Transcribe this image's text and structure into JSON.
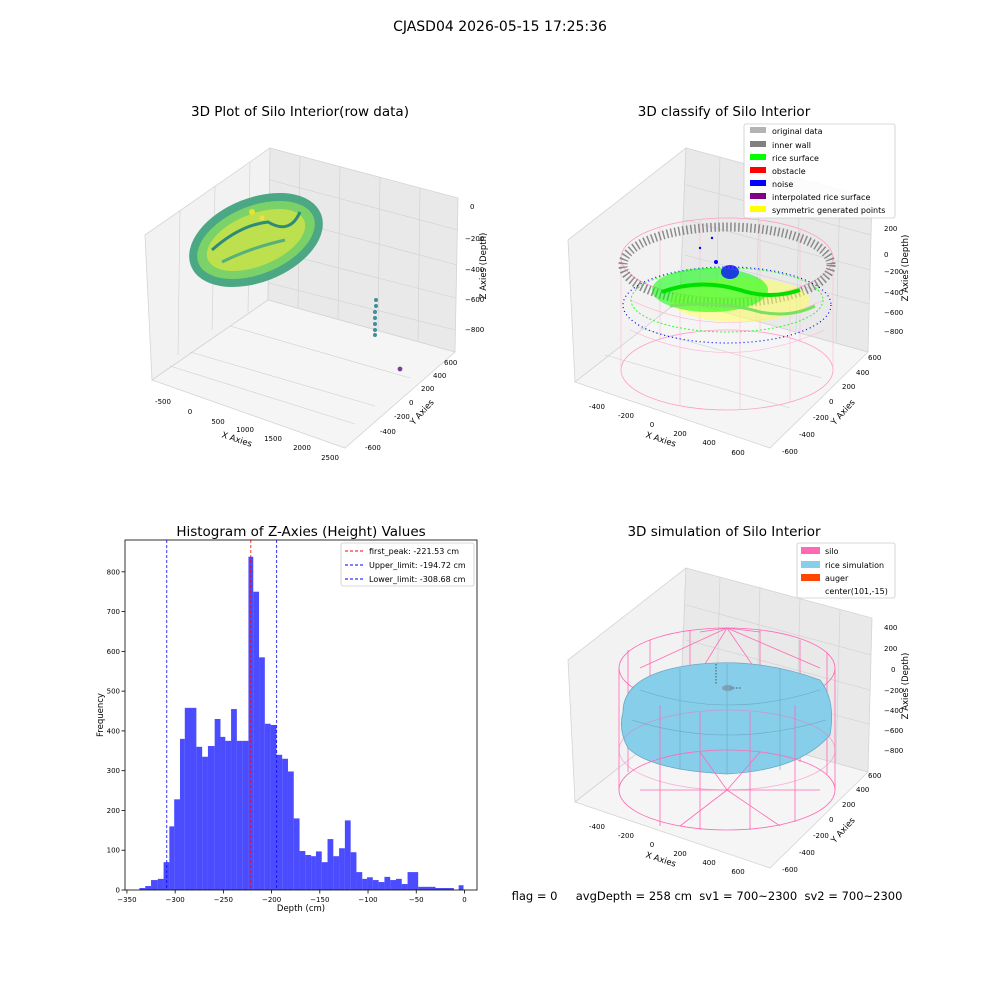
{
  "suptitle": "CJASD04 2026-05-15 17:25:36",
  "panel1": {
    "title": "3D Plot of Silo Interior(row data)",
    "xlabel": "X Axies",
    "ylabel": "Y Axies",
    "zlabel": "Z Axies (Depth)",
    "xticks": [
      "-500",
      "0",
      "500",
      "1000",
      "1500",
      "2000",
      "2500"
    ],
    "yticks": [
      "-600",
      "-400",
      "-200",
      "0",
      "200",
      "400",
      "600"
    ],
    "zticks": [
      "0",
      "−200",
      "−400",
      "−600",
      "−800"
    ]
  },
  "panel2": {
    "title": "3D classify of Silo Interior",
    "xlabel": "X Axies",
    "ylabel": "Y Axies",
    "zlabel": "Z Axies (Depth)",
    "xticks": [
      "-400",
      "-200",
      "0",
      "200",
      "400",
      "600"
    ],
    "yticks": [
      "-600",
      "-400",
      "-200",
      "0",
      "200",
      "400",
      "600"
    ],
    "zticks": [
      "200",
      "0",
      "−200",
      "−400",
      "−600",
      "−800"
    ],
    "legend": [
      {
        "label": "original data",
        "color": "#b3b3b3"
      },
      {
        "label": "inner wall",
        "color": "#808080"
      },
      {
        "label": "rice surface",
        "color": "#00ff00"
      },
      {
        "label": "obstacle",
        "color": "#ff0000"
      },
      {
        "label": "noise",
        "color": "#0000ff"
      },
      {
        "label": "interpolated rice surface",
        "color": "#800080"
      },
      {
        "label": "symmetric generated points",
        "color": "#ffff00"
      }
    ]
  },
  "panel4": {
    "title": "3D simulation of Silo Interior",
    "xlabel": "X Axies",
    "ylabel": "Y Axies",
    "zlabel": "Z Axies (Depth)",
    "xticks": [
      "-400",
      "-200",
      "0",
      "200",
      "400",
      "600"
    ],
    "yticks": [
      "-600",
      "-400",
      "-200",
      "0",
      "200",
      "400",
      "600"
    ],
    "zticks": [
      "400",
      "200",
      "0",
      "−200",
      "−400",
      "−600",
      "−800"
    ],
    "legend": [
      {
        "label": "silo",
        "color": "#ff69b4"
      },
      {
        "label": "rice simulation",
        "color": "#87ceeb"
      },
      {
        "label": "auger",
        "color": "#ff4500"
      },
      {
        "label": "center(101,-15)",
        "color": ""
      }
    ]
  },
  "status_line": "flag = 0     avgDepth = 258 cm  sv1 = 700~2300  sv2 = 700~2300",
  "chart_data": [
    {
      "type": "bar",
      "title": "Histogram of Z-Axies (Height) Values",
      "xlabel": "Depth (cm)",
      "ylabel": "Frequency",
      "xlim": [
        -352,
        13
      ],
      "ylim": [
        0,
        880
      ],
      "xticks": [
        -350,
        -300,
        -250,
        -200,
        -150,
        -100,
        -50,
        0
      ],
      "yticks": [
        0,
        100,
        200,
        300,
        400,
        500,
        600,
        700,
        800
      ],
      "bar_color": "#0000ff",
      "bins": [
        {
          "x0": -337,
          "x1": -331,
          "count": 5
        },
        {
          "x0": -331,
          "x1": -325,
          "count": 10
        },
        {
          "x0": -325,
          "x1": -318,
          "count": 25
        },
        {
          "x0": -318,
          "x1": -312,
          "count": 28
        },
        {
          "x0": -312,
          "x1": -306,
          "count": 70
        },
        {
          "x0": -306,
          "x1": -301,
          "count": 160
        },
        {
          "x0": -301,
          "x1": -295,
          "count": 228
        },
        {
          "x0": -295,
          "x1": -290,
          "count": 380
        },
        {
          "x0": -290,
          "x1": -278,
          "count": 458
        },
        {
          "x0": -278,
          "x1": -272,
          "count": 360
        },
        {
          "x0": -272,
          "x1": -266,
          "count": 335
        },
        {
          "x0": -266,
          "x1": -259,
          "count": 362
        },
        {
          "x0": -259,
          "x1": -253,
          "count": 430
        },
        {
          "x0": -253,
          "x1": -248,
          "count": 385
        },
        {
          "x0": -248,
          "x1": -242,
          "count": 375
        },
        {
          "x0": -242,
          "x1": -236,
          "count": 455
        },
        {
          "x0": -236,
          "x1": -230,
          "count": 375
        },
        {
          "x0": -230,
          "x1": -224,
          "count": 375
        },
        {
          "x0": -224,
          "x1": -219,
          "count": 838
        },
        {
          "x0": -219,
          "x1": -213,
          "count": 750
        },
        {
          "x0": -213,
          "x1": -207,
          "count": 585
        },
        {
          "x0": -207,
          "x1": -201,
          "count": 418
        },
        {
          "x0": -201,
          "x1": -195,
          "count": 415
        },
        {
          "x0": -195,
          "x1": -189,
          "count": 340
        },
        {
          "x0": -189,
          "x1": -183,
          "count": 330
        },
        {
          "x0": -183,
          "x1": -177,
          "count": 298
        },
        {
          "x0": -177,
          "x1": -171,
          "count": 180
        },
        {
          "x0": -171,
          "x1": -165,
          "count": 98
        },
        {
          "x0": -165,
          "x1": -159,
          "count": 88
        },
        {
          "x0": -159,
          "x1": -154,
          "count": 85
        },
        {
          "x0": -154,
          "x1": -148,
          "count": 97
        },
        {
          "x0": -148,
          "x1": -142,
          "count": 70
        },
        {
          "x0": -142,
          "x1": -136,
          "count": 128
        },
        {
          "x0": -136,
          "x1": -130,
          "count": 85
        },
        {
          "x0": -130,
          "x1": -124,
          "count": 105
        },
        {
          "x0": -124,
          "x1": -118,
          "count": 175
        },
        {
          "x0": -118,
          "x1": -112,
          "count": 95
        },
        {
          "x0": -112,
          "x1": -106,
          "count": 45
        },
        {
          "x0": -106,
          "x1": -101,
          "count": 28
        },
        {
          "x0": -101,
          "x1": -95,
          "count": 32
        },
        {
          "x0": -95,
          "x1": -89,
          "count": 25
        },
        {
          "x0": -89,
          "x1": -83,
          "count": 20
        },
        {
          "x0": -83,
          "x1": -77,
          "count": 33
        },
        {
          "x0": -77,
          "x1": -71,
          "count": 25
        },
        {
          "x0": -71,
          "x1": -65,
          "count": 28
        },
        {
          "x0": -65,
          "x1": -59,
          "count": 15
        },
        {
          "x0": -59,
          "x1": -48,
          "count": 45
        },
        {
          "x0": -48,
          "x1": -30,
          "count": 8
        },
        {
          "x0": -30,
          "x1": -11,
          "count": 5
        },
        {
          "x0": -6,
          "x1": -1,
          "count": 12
        }
      ],
      "vlines": [
        {
          "label": "first_peak: -221.53 cm",
          "value": -221.53,
          "color": "#ff0000"
        },
        {
          "label": "Upper_limit: -194.72 cm",
          "value": -194.72,
          "color": "#0000ff"
        },
        {
          "label": "Lower_limit: -308.68 cm",
          "value": -308.68,
          "color": "#0000ff"
        }
      ],
      "legend_position": "upper right"
    }
  ]
}
